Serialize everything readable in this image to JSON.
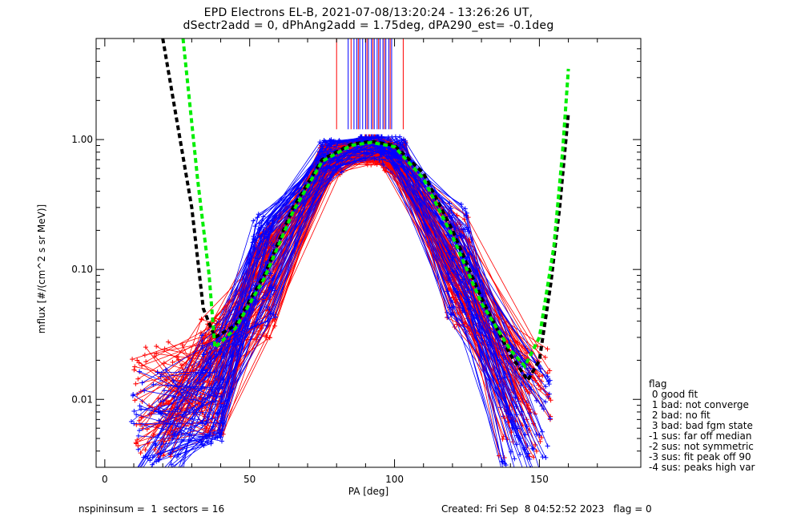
{
  "chart_data": {
    "type": "line",
    "title": "EPD Electrons EL-B, 2021-07-08/13:20:24 - 13:26:26 UT,",
    "subtitle": "dSectr2add = 0, dPhAng2add = 1.75deg, dPA290_est=  -0.1deg",
    "xlabel": "PA [deg]",
    "ylabel": "mflux [#/(cm^2 s sr MeV)]",
    "xlim": [
      -3,
      185
    ],
    "ylim": [
      0.003,
      6.0
    ],
    "yscale": "log",
    "x_ticks": [
      0,
      50,
      100,
      150
    ],
    "x_tick_labels": [
      "0",
      "50",
      "100",
      "150"
    ],
    "y_ticks": [
      0.01,
      0.1,
      1.0
    ],
    "y_tick_labels": [
      "0.01",
      "0.10",
      "1.00"
    ],
    "grid": false,
    "sample_profiles": {
      "blue": {
        "color": "#0000ff",
        "x": [
          18,
          37,
          55,
          78,
          92,
          100,
          122,
          145
        ],
        "y": [
          0.006,
          0.012,
          0.1,
          0.75,
          0.9,
          0.8,
          0.12,
          0.007
        ]
      },
      "red": {
        "color": "#ff0000",
        "x": [
          18,
          37,
          55,
          78,
          92,
          100,
          122,
          145
        ],
        "y": [
          0.01,
          0.015,
          0.08,
          0.7,
          0.85,
          0.75,
          0.1,
          0.01
        ]
      }
    },
    "fit_curves": [
      {
        "color": "#000000",
        "style": "dashed",
        "x": [
          20,
          30,
          34,
          38,
          45,
          55,
          65,
          75,
          85,
          92,
          100,
          110,
          120,
          130,
          140,
          146,
          150,
          154,
          157,
          160
        ],
        "y": [
          6.0,
          0.3,
          0.05,
          0.03,
          0.037,
          0.09,
          0.3,
          0.7,
          0.92,
          0.97,
          0.9,
          0.55,
          0.2,
          0.06,
          0.022,
          0.014,
          0.02,
          0.08,
          0.3,
          1.6
        ]
      },
      {
        "color": "#00ee00",
        "style": "dashed",
        "x": [
          27,
          32,
          36,
          38,
          45,
          55,
          65,
          75,
          85,
          92,
          100,
          110,
          120,
          130,
          140,
          145,
          150,
          155,
          158,
          160
        ],
        "y": [
          6.0,
          0.5,
          0.09,
          0.025,
          0.035,
          0.085,
          0.28,
          0.68,
          0.9,
          0.95,
          0.88,
          0.5,
          0.18,
          0.055,
          0.024,
          0.018,
          0.03,
          0.15,
          0.8,
          3.5
        ]
      }
    ],
    "top_spikes": {
      "blue_x": [
        84,
        86,
        87,
        88,
        89,
        90,
        91,
        92,
        93,
        94,
        95,
        96,
        97,
        98,
        99
      ],
      "red_x": [
        80,
        85,
        87.5,
        90.5,
        92.5,
        94.5,
        96.5,
        98.5,
        103
      ],
      "base": 1.2
    }
  },
  "legend": {
    "title": "flag",
    "items": [
      " 0 good fit",
      " 1 bad: not converge",
      " 2 bad: no fit",
      " 3 bad: bad fgm state",
      "-1 sus: far off median",
      "-2 sus: not symmetric",
      "-3 sus: fit peak off 90",
      "-4 sus: peaks high var"
    ]
  },
  "footer": {
    "left": "nspininsum =  1  sectors = 16",
    "right": "Created: Fri Sep  8 04:52:52 2023   flag = 0"
  }
}
